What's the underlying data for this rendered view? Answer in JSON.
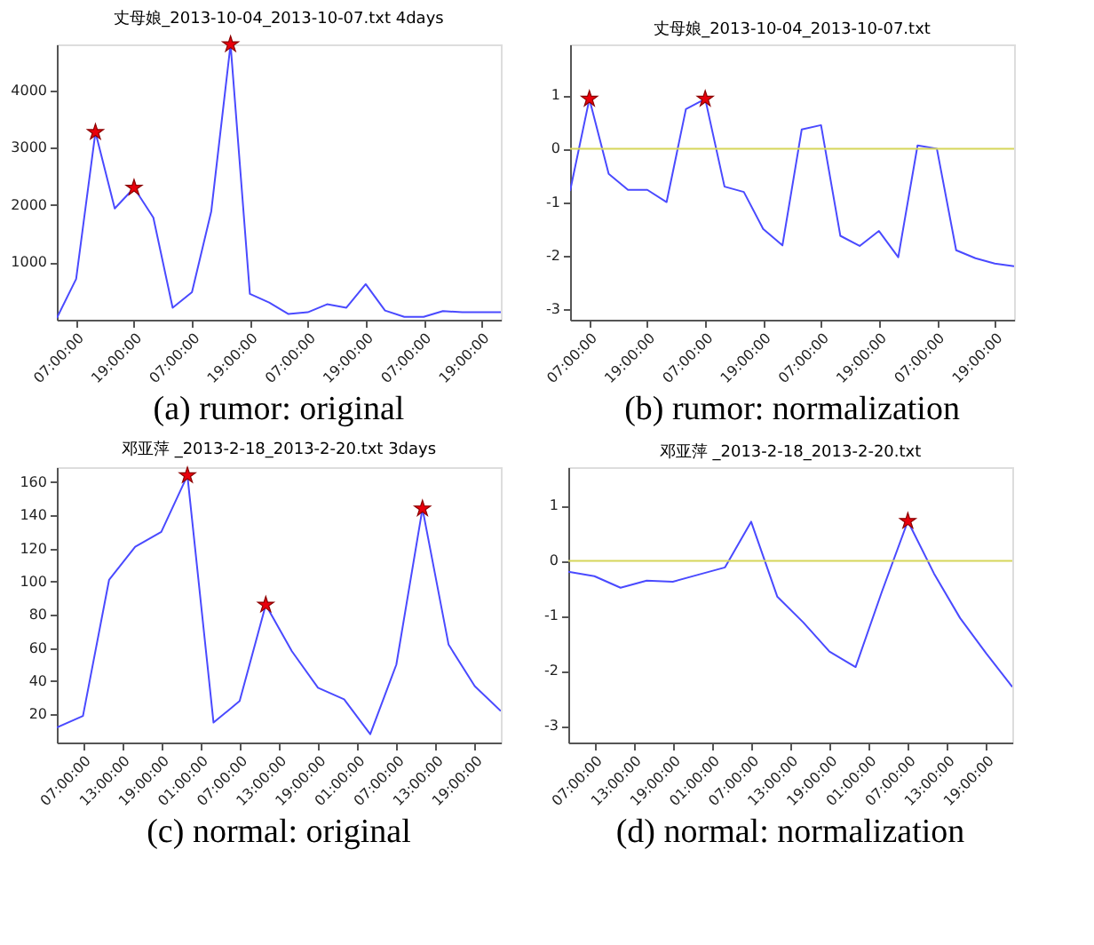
{
  "chart_data": [
    {
      "type": "line",
      "title": "丈母娘_2013-10-04_2013-10-07.txt 4days",
      "annotations": [
        "(a) rumor: original"
      ],
      "x": [
        "2013-10-04T03:00",
        "2013-10-04T07:00",
        "2013-10-04T11:00",
        "2013-10-04T15:00",
        "2013-10-04T19:00",
        "2013-10-04T23:00",
        "2013-10-05T03:00",
        "2013-10-05T07:00",
        "2013-10-05T11:00",
        "2013-10-05T15:00",
        "2013-10-05T19:00",
        "2013-10-05T23:00",
        "2013-10-06T03:00",
        "2013-10-06T07:00",
        "2013-10-06T11:00",
        "2013-10-06T15:00",
        "2013-10-06T19:00",
        "2013-10-06T23:00",
        "2013-10-07T03:00",
        "2013-10-07T07:00",
        "2013-10-07T11:00",
        "2013-10-07T15:00",
        "2013-10-07T19:00",
        "2013-10-07T23:00"
      ],
      "series": [
        {
          "color": "#4a4aff",
          "line_style": "solid",
          "values": [
            30,
            710,
            3270,
            1940,
            2300,
            1780,
            210,
            480,
            1890,
            4800,
            450,
            300,
            100,
            130,
            270,
            210,
            620,
            160,
            50,
            50,
            150,
            130,
            130,
            130
          ]
        },
        {
          "type": "scatter",
          "marker": "star",
          "color": "#e8000b",
          "x": [
            "2013-10-04T11:00",
            "2013-10-04T19:00",
            "2013-10-05T15:00"
          ],
          "values": [
            3270,
            2300,
            4800
          ]
        }
      ],
      "xlim": [
        "2013-10-04T03:00",
        "2013-10-07T23:00"
      ],
      "ylim": [
        0,
        4800
      ],
      "xticks": [
        {
          "value": "2013-10-04T07:00",
          "label": "07:00:00"
        },
        {
          "value": "2013-10-04T19:00",
          "label": "19:00:00"
        },
        {
          "value": "2013-10-05T07:00",
          "label": "07:00:00"
        },
        {
          "value": "2013-10-05T19:00",
          "label": "19:00:00"
        },
        {
          "value": "2013-10-06T07:00",
          "label": "07:00:00"
        },
        {
          "value": "2013-10-06T19:00",
          "label": "19:00:00"
        },
        {
          "value": "2013-10-07T07:00",
          "label": "07:00:00"
        },
        {
          "value": "2013-10-07T19:00",
          "label": "19:00:00"
        }
      ],
      "yticks": [
        1000,
        2000,
        3000,
        4000
      ]
    },
    {
      "type": "line",
      "title": "丈母娘_2013-10-04_2013-10-07.txt",
      "annotations": [
        "(b) rumor: normalization"
      ],
      "x": [
        "2013-10-04T03:00",
        "2013-10-04T07:00",
        "2013-10-04T11:00",
        "2013-10-04T15:00",
        "2013-10-04T19:00",
        "2013-10-04T23:00",
        "2013-10-05T03:00",
        "2013-10-05T07:00",
        "2013-10-05T11:00",
        "2013-10-05T15:00",
        "2013-10-05T19:00",
        "2013-10-05T23:00",
        "2013-10-06T03:00",
        "2013-10-06T07:00",
        "2013-10-06T11:00",
        "2013-10-06T15:00",
        "2013-10-06T19:00",
        "2013-10-06T23:00",
        "2013-10-07T03:00",
        "2013-10-07T07:00",
        "2013-10-07T11:00",
        "2013-10-07T15:00",
        "2013-10-07T19:00",
        "2013-10-07T23:00"
      ],
      "series": [
        {
          "color": "#4a4aff",
          "line_style": "solid",
          "values": [
            -0.79,
            0.93,
            -0.47,
            -0.77,
            -0.77,
            -1.0,
            0.74,
            0.93,
            -0.71,
            -0.81,
            -1.5,
            -1.81,
            0.36,
            0.44,
            -1.63,
            -1.82,
            -1.54,
            -2.03,
            0.06,
            0.0,
            -1.9,
            -2.05,
            -2.15,
            -2.2
          ]
        },
        {
          "type": "scatter",
          "marker": "star",
          "color": "#e8000b",
          "x": [
            "2013-10-04T07:00",
            "2013-10-05T07:00"
          ],
          "values": [
            0.93,
            0.93
          ]
        }
      ],
      "ref_lines": [
        {
          "axis": "y",
          "value": 0,
          "color": "#d6d65a"
        }
      ],
      "xlim": [
        "2013-10-04T03:00",
        "2013-10-07T23:00"
      ],
      "ylim": [
        -3.2,
        1.95
      ],
      "xticks": [
        {
          "value": "2013-10-04T07:00",
          "label": "07:00:00"
        },
        {
          "value": "2013-10-04T19:00",
          "label": "19:00:00"
        },
        {
          "value": "2013-10-05T07:00",
          "label": "07:00:00"
        },
        {
          "value": "2013-10-05T19:00",
          "label": "19:00:00"
        },
        {
          "value": "2013-10-06T07:00",
          "label": "07:00:00"
        },
        {
          "value": "2013-10-06T19:00",
          "label": "19:00:00"
        },
        {
          "value": "2013-10-07T07:00",
          "label": "07:00:00"
        },
        {
          "value": "2013-10-07T19:00",
          "label": "19:00:00"
        }
      ],
      "yticks": [
        -3,
        -2,
        -1,
        0,
        1
      ]
    },
    {
      "type": "line",
      "title": "邓亚萍 _2013-2-18_2013-2-20.txt 3days",
      "annotations": [
        "(c) normal: original"
      ],
      "x": [
        "2013-02-18T03:00",
        "2013-02-18T07:00",
        "2013-02-18T11:00",
        "2013-02-18T15:00",
        "2013-02-18T19:00",
        "2013-02-18T23:00",
        "2013-02-19T03:00",
        "2013-02-19T07:00",
        "2013-02-19T11:00",
        "2013-02-19T15:00",
        "2013-02-19T19:00",
        "2013-02-19T23:00",
        "2013-02-20T03:00",
        "2013-02-20T07:00",
        "2013-02-20T11:00",
        "2013-02-20T15:00",
        "2013-02-20T19:00",
        "2013-02-20T23:00"
      ],
      "series": [
        {
          "color": "#4a4aff",
          "line_style": "solid",
          "values": [
            12,
            19,
            101,
            121,
            130,
            164,
            15,
            28,
            86,
            58,
            36,
            29,
            8,
            50,
            144,
            62,
            37,
            22
          ]
        },
        {
          "type": "scatter",
          "marker": "star",
          "color": "#e8000b",
          "x": [
            "2013-02-18T23:00",
            "2013-02-19T11:00",
            "2013-02-20T11:00"
          ],
          "values": [
            164,
            86,
            144
          ]
        }
      ],
      "xlim": [
        "2013-02-18T03:00",
        "2013-02-20T23:00"
      ],
      "ylim": [
        3,
        169
      ],
      "xticks": [
        {
          "value": "2013-02-18T07:00",
          "label": "07:00:00"
        },
        {
          "value": "2013-02-18T13:00",
          "label": "13:00:00"
        },
        {
          "value": "2013-02-18T19:00",
          "label": "19:00:00"
        },
        {
          "value": "2013-02-19T01:00",
          "label": "01:00:00"
        },
        {
          "value": "2013-02-19T07:00",
          "label": "07:00:00"
        },
        {
          "value": "2013-02-19T13:00",
          "label": "13:00:00"
        },
        {
          "value": "2013-02-19T19:00",
          "label": "19:00:00"
        },
        {
          "value": "2013-02-20T01:00",
          "label": "01:00:00"
        },
        {
          "value": "2013-02-20T07:00",
          "label": "07:00:00"
        },
        {
          "value": "2013-02-20T13:00",
          "label": "13:00:00"
        },
        {
          "value": "2013-02-20T19:00",
          "label": "19:00:00"
        }
      ],
      "yticks": [
        20,
        40,
        60,
        80,
        100,
        120,
        140,
        160
      ]
    },
    {
      "type": "line",
      "title": "邓亚萍 _2013-2-18_2013-2-20.txt",
      "annotations": [
        "(d) normal: normalization"
      ],
      "x": [
        "2013-02-18T03:00",
        "2013-02-18T07:00",
        "2013-02-18T11:00",
        "2013-02-18T15:00",
        "2013-02-18T19:00",
        "2013-02-18T23:00",
        "2013-02-19T03:00",
        "2013-02-19T07:00",
        "2013-02-19T11:00",
        "2013-02-19T15:00",
        "2013-02-19T19:00",
        "2013-02-19T23:00",
        "2013-02-20T03:00",
        "2013-02-20T07:00",
        "2013-02-20T11:00",
        "2013-02-20T15:00",
        "2013-02-20T19:00",
        "2013-02-20T23:00"
      ],
      "series": [
        {
          "color": "#4a4aff",
          "line_style": "solid",
          "values": [
            -0.2,
            -0.28,
            -0.49,
            -0.36,
            -0.38,
            -0.25,
            -0.12,
            0.71,
            -0.65,
            -1.12,
            -1.65,
            -1.93,
            -0.57,
            0.72,
            -0.23,
            -1.04,
            -1.68,
            -2.29
          ]
        },
        {
          "type": "scatter",
          "marker": "star",
          "color": "#e8000b",
          "x": [
            "2013-02-20T07:00"
          ],
          "values": [
            0.72
          ]
        }
      ],
      "ref_lines": [
        {
          "axis": "y",
          "value": 0,
          "color": "#d6d65a"
        }
      ],
      "xlim": [
        "2013-02-18T03:00",
        "2013-02-20T23:00"
      ],
      "ylim": [
        -3.3,
        1.7
      ],
      "xticks": [
        {
          "value": "2013-02-18T07:00",
          "label": "07:00:00"
        },
        {
          "value": "2013-02-18T13:00",
          "label": "13:00:00"
        },
        {
          "value": "2013-02-18T19:00",
          "label": "19:00:00"
        },
        {
          "value": "2013-02-19T01:00",
          "label": "01:00:00"
        },
        {
          "value": "2013-02-19T07:00",
          "label": "07:00:00"
        },
        {
          "value": "2013-02-19T13:00",
          "label": "13:00:00"
        },
        {
          "value": "2013-02-19T19:00",
          "label": "19:00:00"
        },
        {
          "value": "2013-02-20T01:00",
          "label": "01:00:00"
        },
        {
          "value": "2013-02-20T07:00",
          "label": "07:00:00"
        },
        {
          "value": "2013-02-20T13:00",
          "label": "13:00:00"
        },
        {
          "value": "2013-02-20T19:00",
          "label": "19:00:00"
        }
      ],
      "yticks": [
        -3,
        -2,
        -1,
        0,
        1
      ]
    }
  ]
}
